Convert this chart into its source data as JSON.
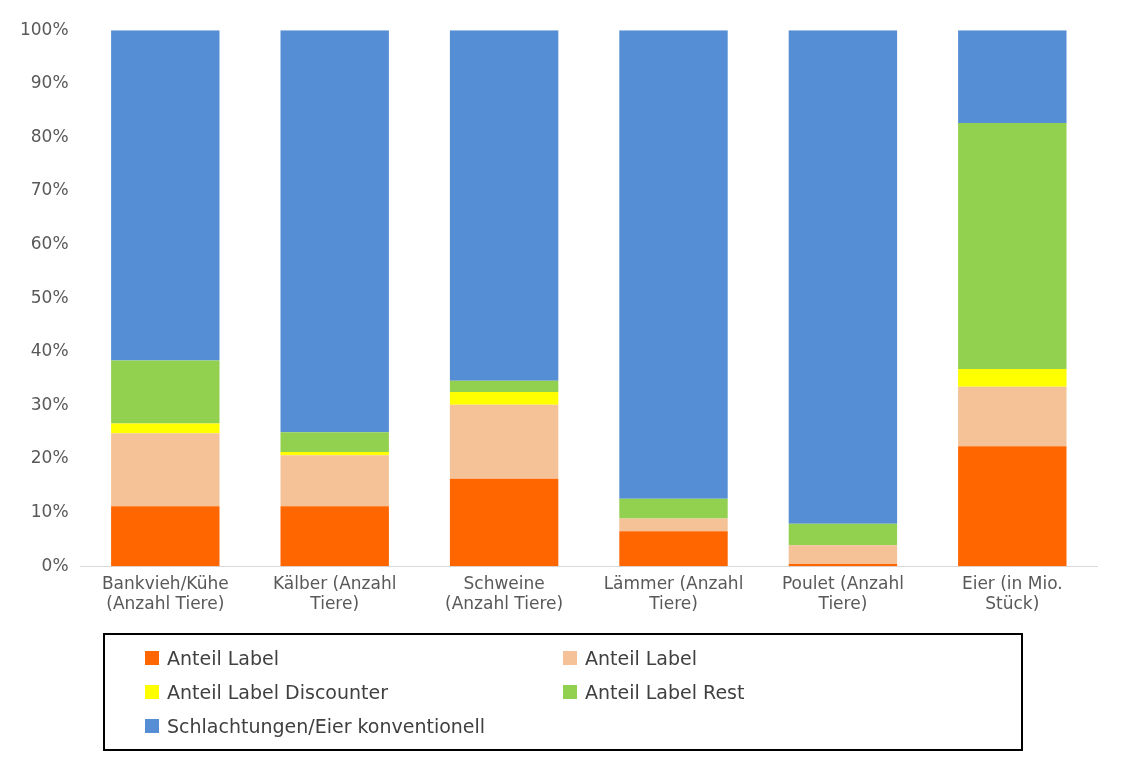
{
  "chart_data": {
    "type": "bar",
    "stacked": true,
    "categories": [
      "Bankvieh/Kühe (Anzahl Tiere)",
      "Kälber (Anzahl Tiere)",
      "Schweine (Anzahl Tiere)",
      "Lämmer (Anzahl Tiere)",
      "Poulet (Anzahl Tiere)",
      "Eier (in Mio. Stück)"
    ],
    "series": [
      {
        "name": "Anteil Label",
        "color": "#ff6600",
        "values": [
          11.2,
          11.2,
          16.3,
          6.5,
          0.4,
          22.4
        ]
      },
      {
        "name": "Anteil Label",
        "color": "#f4c296",
        "values": [
          13.6,
          9.5,
          13.8,
          2.4,
          3.5,
          11.1
        ]
      },
      {
        "name": "Anteil Label Discounter",
        "color": "#ffff00",
        "values": [
          1.8,
          0.6,
          2.4,
          0,
          0,
          3.3
        ]
      },
      {
        "name": "Anteil Label Rest",
        "color": "#92d050",
        "values": [
          11.8,
          3.7,
          2.1,
          3.7,
          4.0,
          45.9
        ]
      },
      {
        "name": "Schlachtungen/Eier konventionell",
        "color": "#558ed5",
        "values": [
          61.6,
          75.0,
          65.4,
          87.4,
          92.1,
          17.3
        ]
      }
    ],
    "ylim": [
      0,
      100
    ],
    "yticks": [
      {
        "value": 0,
        "label": "0%"
      },
      {
        "value": 10,
        "label": "10%"
      },
      {
        "value": 20,
        "label": "20%"
      },
      {
        "value": 30,
        "label": "30%"
      },
      {
        "value": 40,
        "label": "40%"
      },
      {
        "value": 50,
        "label": "50%"
      },
      {
        "value": 60,
        "label": "60%"
      },
      {
        "value": 70,
        "label": "70%"
      },
      {
        "value": 80,
        "label": "80%"
      },
      {
        "value": 90,
        "label": "90%"
      },
      {
        "value": 100,
        "label": "100%"
      }
    ],
    "grid": false,
    "legend": "bottom"
  }
}
